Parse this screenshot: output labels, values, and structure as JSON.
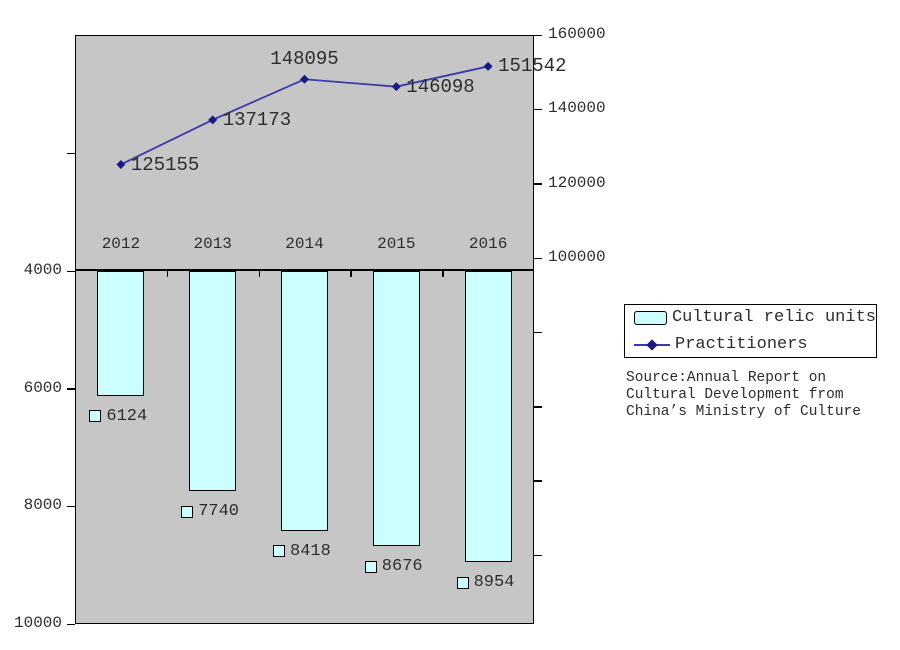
{
  "chart_data": {
    "type": "combo",
    "title": "",
    "categories": [
      "2012",
      "2013",
      "2014",
      "2015",
      "2016"
    ],
    "series": [
      {
        "name": "Cultural relic units",
        "type": "bar",
        "axis": "left",
        "values": [
          6124,
          7740,
          8418,
          8676,
          8954
        ],
        "fill": "#CCFFFF",
        "border": "#000000",
        "data_labels": true
      },
      {
        "name": "Practitioners",
        "type": "line",
        "axis": "right",
        "values": [
          125155,
          137173,
          148095,
          146098,
          151542
        ],
        "line_color": "#3A3AA8",
        "marker": "diamond",
        "marker_color": "#1A1A80",
        "data_labels": true,
        "label_placement": [
          "right",
          "right",
          "above",
          "right",
          "right"
        ]
      }
    ],
    "axes": {
      "left": {
        "inverted": true,
        "range": [
          4000,
          10000
        ],
        "tick_labels": [
          "4000",
          "6000",
          "8000",
          "10000"
        ],
        "tick_values": [
          4000,
          6000,
          8000,
          10000
        ]
      },
      "right": {
        "range": [
          100000,
          160000
        ],
        "tick_labels": [
          "160000",
          "140000",
          "120000",
          "100000"
        ],
        "tick_values": [
          160000,
          140000,
          120000,
          100000
        ]
      }
    },
    "gridlines": false,
    "plot_background": "#C6C6C6",
    "legend_position": "right"
  },
  "legend": {
    "items": [
      {
        "label": "Cultural relic units",
        "swatch": "bar"
      },
      {
        "label": "Practitioners",
        "swatch": "line-diamond"
      }
    ]
  },
  "source_note": {
    "lines": [
      "Source:Annual Report on",
      "Cultural Development from",
      "China’s Ministry of Culture"
    ]
  },
  "colors": {
    "bar_fill": "#CCFFFF",
    "line": "#3A3AA8",
    "marker": "#1A1A80",
    "plot_background": "#C6C6C6",
    "text": "#2D2D2D"
  }
}
